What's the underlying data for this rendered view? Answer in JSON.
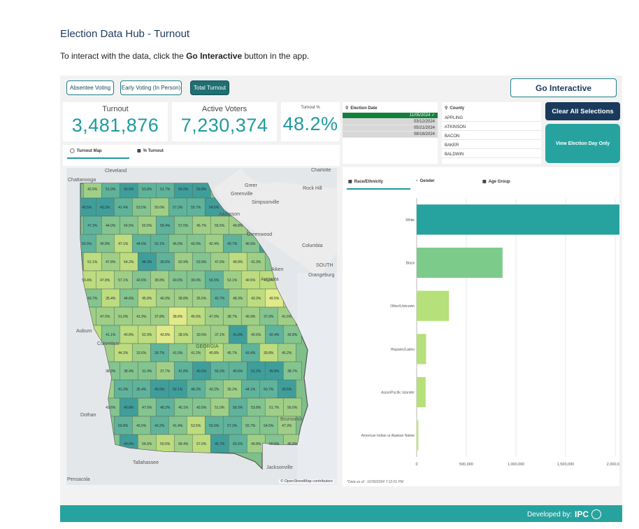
{
  "header": {
    "title": "Election Data Hub - Turnout",
    "intro_prefix": "To interact with the data, click the ",
    "intro_bold": "Go Interactive",
    "intro_suffix": " button in the app."
  },
  "tabs": [
    {
      "label": "Absentee Voting",
      "active": false
    },
    {
      "label": "Early Voting (In Person)",
      "active": false
    },
    {
      "label": "Total Turnout",
      "active": true
    }
  ],
  "go_interactive": "Go Interactive",
  "kpis": {
    "turnout_label": "Turnout",
    "turnout_value": "3,481,876",
    "active_label": "Active Voters",
    "active_value": "7,230,374",
    "pct_label": "Turnout %",
    "pct_value": "48.2%"
  },
  "election_date_filter": {
    "title": "Election Date",
    "items": [
      {
        "label": "11/05/2024",
        "selected": true
      },
      {
        "label": "03/12/2024",
        "selected": false
      },
      {
        "label": "05/21/2024",
        "selected": false
      },
      {
        "label": "08/18/2024",
        "selected": false
      }
    ]
  },
  "county_filter": {
    "title": "County",
    "items": [
      "APPLING",
      "ATKINSON",
      "BACON",
      "BAKER",
      "BALDWIN"
    ]
  },
  "clear_all": "Clear All Selections",
  "view_election_day": "View Election Day Only",
  "map_tabs": {
    "map": "Turnout Map",
    "pct": "% Turnout"
  },
  "map": {
    "attribution": "© OpenStreetMap contributors",
    "places": [
      "Cleveland",
      "Charlotte",
      "Chattanooga",
      "Rock Hill",
      "Greer",
      "Greenville",
      "Simpsonville",
      "Anderson",
      "Greenwood",
      "Columbia",
      "Aiken",
      "SOUTH",
      "Augusta",
      "Orangeburg",
      "Auburn",
      "Columbus",
      "GEORGIA",
      "Dothan",
      "Tallahassee",
      "Jacksonville",
      "Brunswick",
      "Pensacola"
    ],
    "county_values": [
      "42.6",
      "51.0",
      "56.5",
      "53.8",
      "51.7",
      "56.0",
      "59.8",
      "45.5",
      "43.2",
      "41.4",
      "53.5",
      "50.0",
      "57.3",
      "55.7",
      "54.5",
      "47.3",
      "44.0",
      "54.5",
      "50.5",
      "58.4",
      "57.0",
      "45.7",
      "55.5",
      "49.8",
      "50.5",
      "45.8",
      "47.1",
      "44.5",
      "52.1",
      "46.0",
      "43.9",
      "42.4",
      "40.7",
      "46.5",
      "51.1",
      "47.8",
      "54.2",
      "48.3",
      "39.6",
      "50.9",
      "53.9",
      "47.6",
      "49.8",
      "41.3",
      "53.4",
      "47.8",
      "57.1",
      "42.6",
      "38.8",
      "43.0",
      "39.0",
      "56.5",
      "52.1",
      "40.5",
      "47.3",
      "43.7",
      "35.4",
      "44.6",
      "45.8",
      "46.0",
      "38.8",
      "35.5",
      "42.7",
      "48.3",
      "43.3",
      "49.5",
      "47.5",
      "51.0",
      "41.9",
      "37.8",
      "38.8",
      "45.6",
      "47.0",
      "38.7",
      "45.9",
      "37.0",
      "41.6",
      "41.1",
      "40.8",
      "52.9",
      "43.8",
      "38.5",
      "30.5",
      "37.1",
      "41.8",
      "40.5",
      "42.4",
      "42.8",
      "44.3",
      "33.6",
      "39.7",
      "41.5",
      "41.2",
      "40.8",
      "45.7",
      "43.4",
      "39.8",
      "45.2",
      "38.3",
      "38.4",
      "31.4",
      "37.7",
      "41.8",
      "40.5",
      "56.2",
      "40.6",
      "51.2",
      "45.8",
      "38.7",
      "41.3",
      "35.4",
      "40.5",
      "52.1",
      "48.2",
      "43.2",
      "35.2",
      "44.1",
      "50.7",
      "39.5",
      "43.6",
      "40.8",
      "47.5",
      "48.2",
      "45.1"
    ]
  },
  "chart_tabs": {
    "race": "Race/Ethnicity",
    "gender": "Gender",
    "age": "Age Group"
  },
  "footnote": "*Data as of : 10/30/2024 7:12:01 PM",
  "chart_data": {
    "type": "bar",
    "orientation": "horizontal",
    "categories": [
      "White",
      "Black",
      "Other/Unknown",
      "Hispanic/Latino",
      "Asian/Pacific Islander",
      "American Indian or Alaskan Native"
    ],
    "values": [
      2080000,
      865000,
      325000,
      95000,
      90000,
      18000
    ],
    "colors": [
      "#26a39f",
      "#7ccb8a",
      "#b5e07a",
      "#b5e07a",
      "#b5e07a",
      "#c7e68a"
    ],
    "xticks": [
      "0",
      "500,000",
      "1,000,000",
      "1,500,000",
      "2,000,000"
    ],
    "xlim": [
      0,
      2000000
    ]
  },
  "footer": {
    "text": "Developed by:",
    "brand": "IPC"
  }
}
